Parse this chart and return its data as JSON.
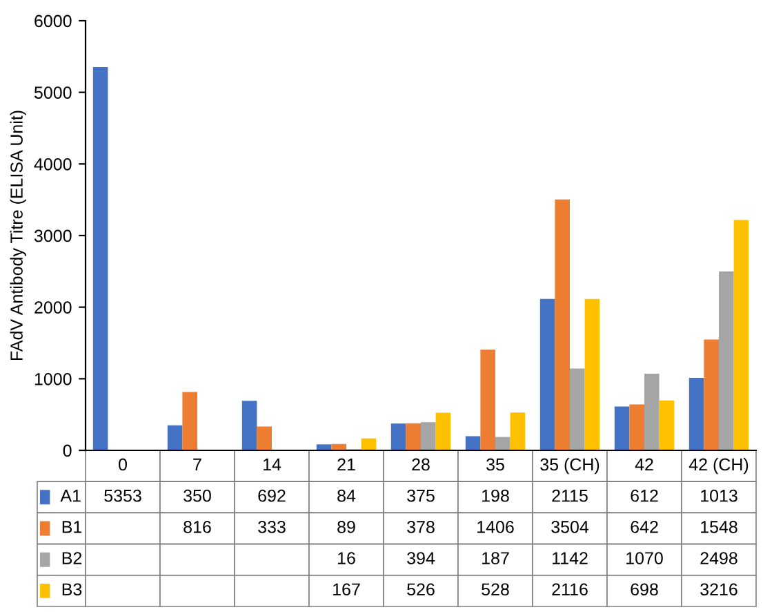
{
  "chart_data": {
    "type": "bar",
    "ylabel": "FAdV Antibody Titre (ELISA Unit)",
    "categories": [
      "0",
      "7",
      "14",
      "21",
      "28",
      "35",
      "35 (CH)",
      "42",
      "42 (CH)"
    ],
    "series": [
      {
        "name": "A1",
        "color": "#4472c4",
        "values": [
          5353,
          350,
          692,
          84,
          375,
          198,
          2115,
          612,
          1013
        ]
      },
      {
        "name": "B1",
        "color": "#ed7d31",
        "values": [
          null,
          816,
          333,
          89,
          378,
          1406,
          3504,
          642,
          1548
        ]
      },
      {
        "name": "B2",
        "color": "#a5a5a5",
        "values": [
          null,
          null,
          null,
          16,
          394,
          187,
          1142,
          1070,
          2498
        ]
      },
      {
        "name": "B3",
        "color": "#ffc000",
        "values": [
          null,
          null,
          null,
          167,
          526,
          528,
          2116,
          698,
          3216
        ]
      }
    ],
    "ylim": [
      0,
      6000
    ],
    "yticks": [
      0,
      1000,
      2000,
      3000,
      4000,
      5000,
      6000
    ],
    "grid": false,
    "legend": "bottom left",
    "data_labels": true
  }
}
